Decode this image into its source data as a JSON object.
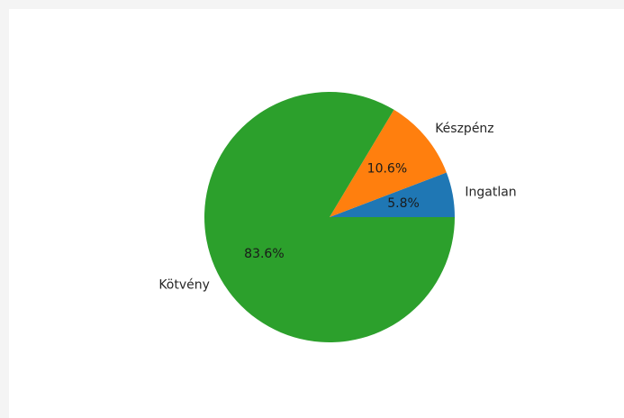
{
  "chart_data": {
    "type": "pie",
    "title": "",
    "start_angle": 0,
    "direction": "counterclockwise",
    "slices": [
      {
        "label": "Ingatlan",
        "value": 5.8,
        "pct_label": "5.8%",
        "color": "#1f77b4"
      },
      {
        "label": "Készpénz",
        "value": 10.6,
        "pct_label": "10.6%",
        "color": "#ff7f0e"
      },
      {
        "label": "Kötvény",
        "value": 83.6,
        "pct_label": "83.6%",
        "color": "#2ca02c"
      }
    ]
  }
}
